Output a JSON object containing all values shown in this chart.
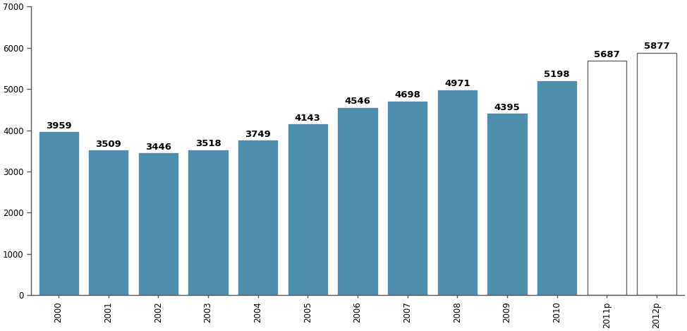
{
  "categories": [
    "2000",
    "2001",
    "2002",
    "2003",
    "2004",
    "2005",
    "2006",
    "2007",
    "2008",
    "2009",
    "2010",
    "2011p",
    "2012p"
  ],
  "values": [
    3959,
    3509,
    3446,
    3518,
    3749,
    4143,
    4546,
    4698,
    4971,
    4395,
    5198,
    5687,
    5877
  ],
  "bar_colors": [
    "#4d8fac",
    "#4d8fac",
    "#4d8fac",
    "#4d8fac",
    "#4d8fac",
    "#4d8fac",
    "#4d8fac",
    "#4d8fac",
    "#4d8fac",
    "#4d8fac",
    "#4d8fac",
    "#ffffff",
    "#ffffff"
  ],
  "bar_edgecolors": [
    "#4d8fac",
    "#4d8fac",
    "#4d8fac",
    "#4d8fac",
    "#4d8fac",
    "#4d8fac",
    "#4d8fac",
    "#4d8fac",
    "#4d8fac",
    "#4d8fac",
    "#4d8fac",
    "#666666",
    "#666666"
  ],
  "ylim": [
    0,
    7000
  ],
  "yticks": [
    0,
    1000,
    2000,
    3000,
    4000,
    5000,
    6000,
    7000
  ],
  "label_fontsize": 9.5,
  "label_fontweight": "bold",
  "tick_fontsize": 8.5,
  "bar_width": 0.78,
  "background_color": "#ffffff",
  "spine_color": "#555555"
}
